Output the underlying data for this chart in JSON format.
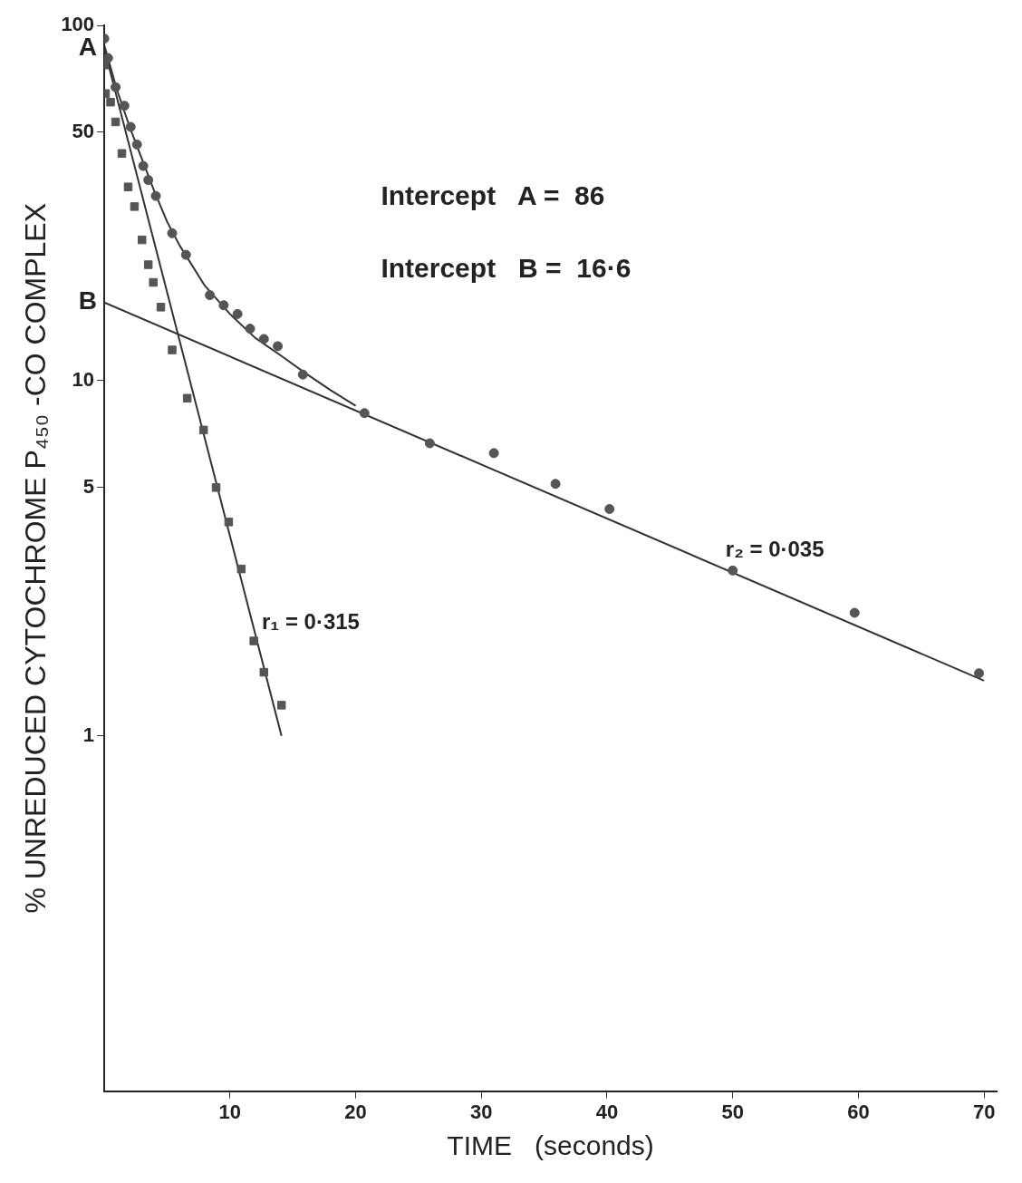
{
  "chart_data": {
    "type": "scatter",
    "xlabel": "TIME   (seconds)",
    "ylabel": "% UNREDUCED CYTOCHROME P₄₅₀ -CO COMPLEX",
    "log": "y",
    "grid": false,
    "legend": false,
    "xlim": [
      0,
      71
    ],
    "xticks": [
      10,
      20,
      30,
      40,
      50,
      60,
      70
    ],
    "ylim": [
      0.1,
      100
    ],
    "yticks": [
      1,
      5,
      10,
      50,
      100
    ],
    "series": [
      {
        "type": "scatter",
        "marker": "square",
        "color": "#555555",
        "x": [
          0,
          0.1,
          0.5,
          0.9,
          1.4,
          1.9,
          2.4,
          3.0,
          3.5,
          3.9,
          4.5,
          5.4,
          6.6,
          7.9,
          8.9,
          9.9,
          10.9,
          11.9,
          12.7,
          14.1
        ],
        "values": [
          77.3,
          64.3,
          60.8,
          53.5,
          43.6,
          35.1,
          30.9,
          24.9,
          21.2,
          18.9,
          16.1,
          12.2,
          8.92,
          7.26,
          5.0,
          4.0,
          2.95,
          1.85,
          1.51,
          1.22
        ]
      },
      {
        "type": "scatter",
        "marker": "circle",
        "color": "#555555",
        "x": [
          0,
          0.3,
          0.9,
          1.6,
          2.1,
          2.6,
          3.1,
          3.5,
          4.1,
          5.4,
          6.5,
          8.4,
          9.5,
          10.6,
          11.6,
          12.7,
          13.8,
          15.8,
          20.7,
          25.9,
          31.0,
          35.9,
          40.2,
          50,
          59.7,
          69.6
        ],
        "values": [
          91.8,
          80.9,
          67,
          59.4,
          51.8,
          46.2,
          40.2,
          36.7,
          33.1,
          26.0,
          22.6,
          17.4,
          16.3,
          15.4,
          14.0,
          13.1,
          12.5,
          10.4,
          8.1,
          6.66,
          6.25,
          5.12,
          4.35,
          2.92,
          2.22,
          1.5
        ]
      },
      {
        "type": "line",
        "marker": "none",
        "color": "#333333",
        "x": [
          0,
          14.1
        ],
        "values": [
          86,
          1.0
        ]
      },
      {
        "type": "line",
        "marker": "none",
        "color": "#333333",
        "x": [
          0,
          70
        ],
        "values": [
          16.6,
          1.43
        ]
      },
      {
        "type": "line",
        "marker": "none",
        "color": "#333333",
        "x": [
          0,
          1,
          2,
          3,
          4,
          5,
          6,
          8,
          10,
          12,
          14,
          16,
          18,
          20
        ],
        "values": [
          88,
          66,
          52,
          42,
          34,
          28,
          24,
          18.5,
          15.4,
          13.2,
          11.8,
          10.5,
          9.4,
          8.5
        ]
      }
    ],
    "annotations": [
      "Intercept   A =  86",
      "Intercept   B =  16·6",
      {
        "text": "A",
        "x": 0,
        "y": 86
      },
      {
        "text": "B",
        "x": 0,
        "y": 16.6
      },
      {
        "text": "r₁ = 0·315",
        "x": 12.1,
        "y": 1.87
      },
      {
        "text": "r₂ = 0·035",
        "x": 49,
        "y": 2.99
      }
    ]
  }
}
